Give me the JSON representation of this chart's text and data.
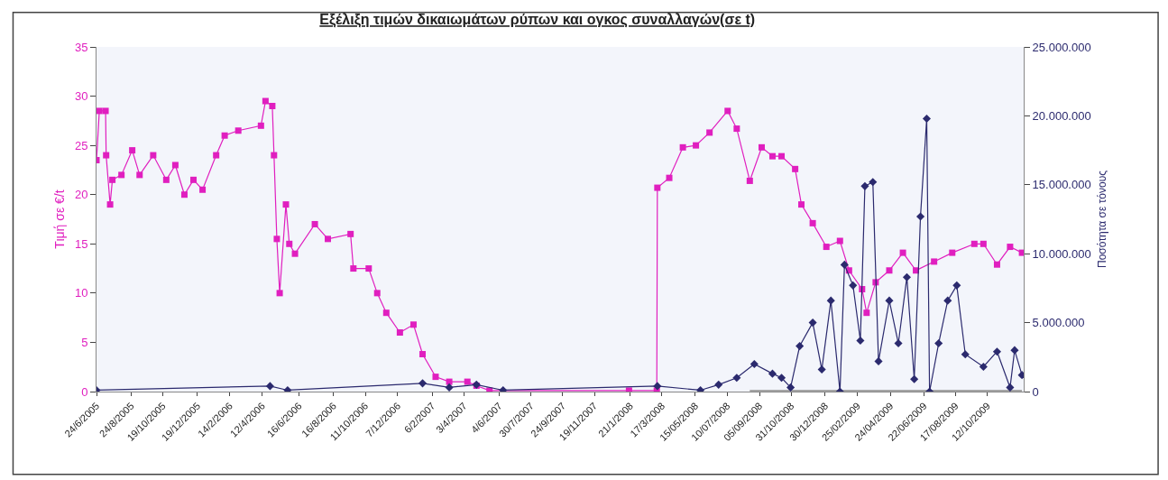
{
  "chart_data": {
    "type": "line",
    "title": "Εξέλιξη τιμών δικαιωμάτων ρύπων και ογκος συναλλαγών(σε t)",
    "ylabel": "Τιμή σε €/t",
    "y2label": "Ποσότητα σε τόνους",
    "xlim": [
      "2005-06-24",
      "2009-12-15"
    ],
    "xticks": [
      {
        "value": "2005-06-24",
        "label": "24/6/2005"
      },
      {
        "value": "2005-08-24",
        "label": "24/8/2005"
      },
      {
        "value": "2005-10-19",
        "label": "19/10/2005"
      },
      {
        "value": "2005-12-19",
        "label": "19/12/2005"
      },
      {
        "value": "2006-02-14",
        "label": "14/2/2006"
      },
      {
        "value": "2006-04-12",
        "label": "12/4/2006"
      },
      {
        "value": "2006-06-16",
        "label": "16/6/2006"
      },
      {
        "value": "2006-08-16",
        "label": "16/8/2006"
      },
      {
        "value": "2006-10-11",
        "label": "11/10/2006"
      },
      {
        "value": "2006-12-07",
        "label": "7/12/2006"
      },
      {
        "value": "2007-02-06",
        "label": "6/2/2007"
      },
      {
        "value": "2007-04-03",
        "label": "3/4/2007"
      },
      {
        "value": "2007-06-04",
        "label": "4/6/2007"
      },
      {
        "value": "2007-07-30",
        "label": "30/7/2007"
      },
      {
        "value": "2007-09-24",
        "label": "24/9/2007"
      },
      {
        "value": "2007-11-19",
        "label": "19/11/2007"
      },
      {
        "value": "2008-01-21",
        "label": "21/1/2008"
      },
      {
        "value": "2008-03-17",
        "label": "17/3/2008"
      },
      {
        "value": "2008-05-15",
        "label": "15/05/2008"
      },
      {
        "value": "2008-07-10",
        "label": "10/07/2008"
      },
      {
        "value": "2008-09-05",
        "label": "05/09/2008"
      },
      {
        "value": "2008-10-31",
        "label": "31/10/2008"
      },
      {
        "value": "2008-12-30",
        "label": "30/12/2008"
      },
      {
        "value": "2009-02-25",
        "label": "25/02/2009"
      },
      {
        "value": "2009-04-24",
        "label": "24/04/2009"
      },
      {
        "value": "2009-06-22",
        "label": "22/06/2009"
      },
      {
        "value": "2009-08-17",
        "label": "17/08/2009"
      },
      {
        "value": "2009-10-12",
        "label": "12/10/2009"
      }
    ],
    "ylim": [
      0,
      35
    ],
    "yticks": [
      0,
      5,
      10,
      15,
      20,
      25,
      30,
      35
    ],
    "y2lim": [
      0,
      25000000
    ],
    "y2ticks": [
      {
        "value": 0,
        "label": "0"
      },
      {
        "value": 5000000,
        "label": "5.000.000"
      },
      {
        "value": 10000000,
        "label": "10.000.000"
      },
      {
        "value": 15000000,
        "label": "15.000.000"
      },
      {
        "value": 20000000,
        "label": "20.000.000"
      },
      {
        "value": 25000000,
        "label": "25.000.000"
      }
    ],
    "grid": false,
    "line_style": "solid",
    "series": [
      {
        "color": "#e01fbf",
        "marker": "square",
        "x": [
          "2005-06-24",
          "2005-06-29",
          "2005-07-10",
          "2005-07-11",
          "2005-07-18",
          "2005-07-22",
          "2005-08-07",
          "2005-08-26",
          "2005-09-08",
          "2005-10-02",
          "2005-10-25",
          "2005-11-10",
          "2005-11-26",
          "2005-12-12",
          "2005-12-28",
          "2006-01-21",
          "2006-02-05",
          "2006-03-01",
          "2006-04-10",
          "2006-04-18",
          "2006-04-30",
          "2006-05-03",
          "2006-05-08",
          "2006-05-13",
          "2006-05-24",
          "2006-05-30",
          "2006-06-09",
          "2006-07-14",
          "2006-08-06",
          "2006-09-15",
          "2006-09-20",
          "2006-10-17",
          "2006-11-01",
          "2006-11-17",
          "2006-12-11",
          "2007-01-04",
          "2007-01-20",
          "2007-02-12",
          "2007-03-08",
          "2007-04-09",
          "2007-04-25",
          "2007-05-18",
          "2008-01-19",
          "2008-03-08",
          "2008-03-09",
          "2008-03-30",
          "2008-04-23",
          "2008-05-16",
          "2008-06-09",
          "2008-07-11",
          "2008-07-27",
          "2008-08-19",
          "2008-09-09",
          "2008-09-28",
          "2008-10-14",
          "2008-11-07",
          "2008-11-18",
          "2008-12-08",
          "2009-01-01",
          "2009-01-25",
          "2009-02-10",
          "2009-03-05",
          "2009-03-13",
          "2009-03-29",
          "2009-04-22",
          "2009-05-16",
          "2009-06-08",
          "2009-07-10",
          "2009-08-11",
          "2009-09-19",
          "2009-10-05",
          "2009-10-29",
          "2009-11-21",
          "2009-12-12"
        ],
        "values": [
          23.5,
          28.5,
          28.5,
          24,
          19,
          21.5,
          22,
          24.5,
          22,
          24,
          21.5,
          23,
          20,
          21.5,
          20.5,
          24,
          26,
          26.5,
          27,
          29.5,
          29,
          24,
          15.5,
          10,
          19,
          15,
          14,
          17,
          15.5,
          16,
          12.5,
          12.5,
          10,
          8,
          6,
          6.8,
          3.8,
          1.5,
          1,
          1,
          0.6,
          0.1,
          0.1,
          0.1,
          20.7,
          21.7,
          24.8,
          25,
          26.3,
          28.5,
          26.7,
          21.4,
          24.8,
          23.9,
          23.9,
          22.6,
          19,
          17.1,
          14.7,
          15.3,
          12.3,
          10.4,
          8,
          11.1,
          12.3,
          14.1,
          12.3,
          13.2,
          14.1,
          15,
          15,
          12.9,
          14.7,
          14.1
        ]
      },
      {
        "color": "#2b2a6e",
        "marker": "diamond",
        "axis": "y2",
        "x": [
          "2005-06-24",
          "2006-04-26",
          "2006-05-27",
          "2007-01-20",
          "2007-03-08",
          "2007-04-25",
          "2007-06-11",
          "2008-03-09",
          "2008-05-24",
          "2008-06-25",
          "2008-07-27",
          "2008-08-27",
          "2008-09-28",
          "2008-10-14",
          "2008-10-30",
          "2008-11-15",
          "2008-12-08",
          "2008-12-24",
          "2009-01-09",
          "2009-01-25",
          "2009-02-02",
          "2009-02-17",
          "2009-03-02",
          "2009-03-10",
          "2009-03-24",
          "2009-04-03",
          "2009-04-22",
          "2009-05-08",
          "2009-05-23",
          "2009-06-05",
          "2009-06-16",
          "2009-06-27",
          "2009-07-02",
          "2009-07-18",
          "2009-08-03",
          "2009-08-19",
          "2009-09-03",
          "2009-10-05",
          "2009-10-29",
          "2009-11-21",
          "2009-11-29",
          "2009-12-12"
        ],
        "values": [
          100000,
          400000,
          100000,
          600000,
          300000,
          500000,
          100000,
          400000,
          100000,
          500000,
          1000000,
          2000000,
          1300000,
          1000000,
          300000,
          3300000,
          5000000,
          1600000,
          6600000,
          0,
          9200000,
          7700000,
          3700000,
          14900000,
          15200000,
          2200000,
          6600000,
          3500000,
          8300000,
          900000,
          12700000,
          19800000,
          0,
          3500000,
          6600000,
          7700000,
          2700000,
          1800000,
          2900000,
          300000,
          3000000,
          1200000
        ]
      },
      {
        "color": "#a6a6a6",
        "marker": "none",
        "x": [
          "2008-08-19",
          "2009-12-12"
        ],
        "values": [
          0,
          0
        ]
      }
    ]
  }
}
